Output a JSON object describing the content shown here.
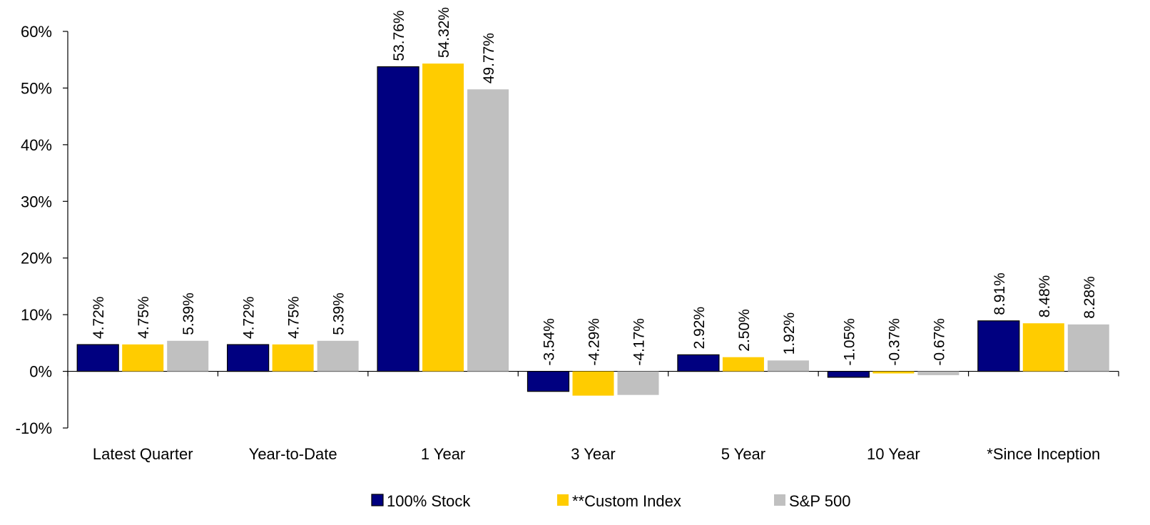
{
  "chart_data": {
    "type": "bar",
    "categories": [
      "Latest Quarter",
      "Year-to-Date",
      "1 Year",
      "3 Year",
      "5 Year",
      "10 Year",
      "*Since Inception"
    ],
    "series": [
      {
        "name": "100% Stock",
        "color": "#000080",
        "values": [
          4.72,
          4.72,
          53.76,
          -3.54,
          2.92,
          -1.05,
          8.91
        ],
        "labels": [
          "4.72%",
          "4.72%",
          "53.76%",
          "-3.54%",
          "2.92%",
          "-1.05%",
          "8.91%"
        ]
      },
      {
        "name": "**Custom Index",
        "color": "#FFCC00",
        "values": [
          4.75,
          4.75,
          54.32,
          -4.29,
          2.5,
          -0.37,
          8.48
        ],
        "labels": [
          "4.75%",
          "4.75%",
          "54.32%",
          "-4.29%",
          "2.50%",
          "-0.37%",
          "8.48%"
        ]
      },
      {
        "name": "S&P 500",
        "color": "#C0C0C0",
        "values": [
          5.39,
          5.39,
          49.77,
          -4.17,
          1.92,
          -0.67,
          8.28
        ],
        "labels": [
          "5.39%",
          "5.39%",
          "49.77%",
          "-4.17%",
          "1.92%",
          "-0.67%",
          "8.28%"
        ]
      }
    ],
    "yticks": [
      "-10%",
      "0%",
      "10%",
      "20%",
      "30%",
      "40%",
      "50%",
      "60%"
    ],
    "ylim": [
      -10,
      60
    ],
    "legend_position": "bottom",
    "grid": false
  }
}
